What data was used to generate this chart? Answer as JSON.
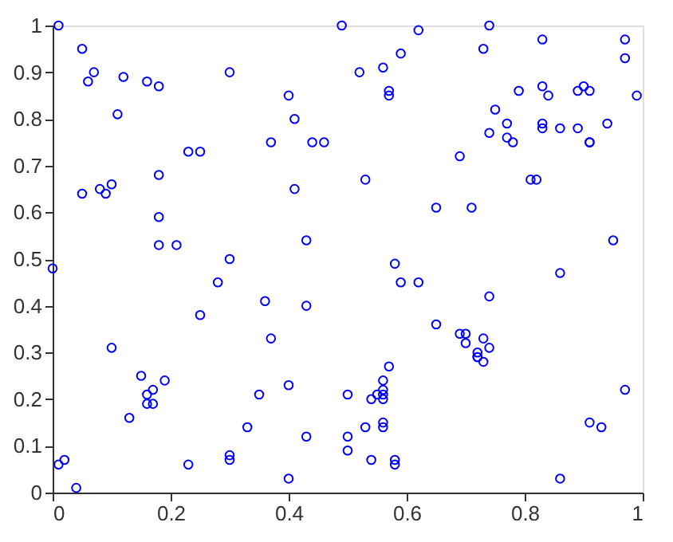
{
  "chart_data": {
    "type": "scatter",
    "marker": "circle",
    "grid": false,
    "xlim": [
      0,
      1
    ],
    "ylim": [
      0,
      1
    ],
    "xticks": [
      0,
      0.2,
      0.4,
      0.6,
      0.8,
      1
    ],
    "yticks": [
      0,
      0.1,
      0.2,
      0.3,
      0.4,
      0.5,
      0.6,
      0.7,
      0.8,
      0.9,
      1
    ],
    "series": [
      {
        "color": "#0000ff",
        "x": [
          0.01,
          0.05,
          0.06,
          0.07,
          0.11,
          0.12,
          0.16,
          0.18,
          0.3,
          0.4,
          0.41,
          0.37,
          0.44,
          0.46,
          0.23,
          0.25,
          0.05,
          0.08,
          0.09,
          0.1,
          0.18,
          0.41,
          0.18,
          0.18,
          0.21,
          0.43,
          0.3,
          0.49,
          0.74,
          0.62,
          0.83,
          0.97,
          0.59,
          0.73,
          0.52,
          0.56,
          0.97,
          0.99,
          0.79,
          0.83,
          0.84,
          0.89,
          0.9,
          0.91,
          0.57,
          0.57,
          0.75,
          0.77,
          0.74,
          0.77,
          0.78,
          0.83,
          0.83,
          0.86,
          0.89,
          0.91,
          0.91,
          0.94,
          0.69,
          0.53,
          0.81,
          0.82,
          0.65,
          0.71,
          0.95,
          0.58,
          0.0,
          0.28,
          0.25,
          0.36,
          0.43,
          0.37,
          0.1,
          0.15,
          0.19,
          0.16,
          0.17,
          0.16,
          0.17,
          0.13,
          0.35,
          0.4,
          0.5,
          0.33,
          0.5,
          0.43,
          0.5,
          0.01,
          0.02,
          0.04,
          0.23,
          0.3,
          0.3,
          0.4,
          0.59,
          0.62,
          0.86,
          0.74,
          0.65,
          0.69,
          0.7,
          0.7,
          0.73,
          0.74,
          0.72,
          0.72,
          0.72,
          0.73,
          0.57,
          0.56,
          0.56,
          0.55,
          0.56,
          0.54,
          0.56,
          0.56,
          0.56,
          0.53,
          0.54,
          0.58,
          0.58,
          0.91,
          0.93,
          0.97,
          0.86
        ],
        "values": [
          1.0,
          0.95,
          0.88,
          0.9,
          0.81,
          0.89,
          0.88,
          0.87,
          0.9,
          0.85,
          0.8,
          0.75,
          0.75,
          0.75,
          0.73,
          0.73,
          0.64,
          0.65,
          0.64,
          0.66,
          0.68,
          0.65,
          0.59,
          0.53,
          0.53,
          0.54,
          0.5,
          1.0,
          1.0,
          0.99,
          0.97,
          0.97,
          0.94,
          0.95,
          0.9,
          0.91,
          0.93,
          0.85,
          0.86,
          0.87,
          0.85,
          0.86,
          0.87,
          0.86,
          0.85,
          0.86,
          0.82,
          0.79,
          0.77,
          0.76,
          0.75,
          0.79,
          0.78,
          0.78,
          0.78,
          0.75,
          0.75,
          0.79,
          0.72,
          0.67,
          0.67,
          0.67,
          0.61,
          0.61,
          0.54,
          0.49,
          0.48,
          0.45,
          0.38,
          0.41,
          0.4,
          0.33,
          0.31,
          0.25,
          0.24,
          0.21,
          0.22,
          0.19,
          0.19,
          0.16,
          0.21,
          0.23,
          0.21,
          0.14,
          0.12,
          0.12,
          0.09,
          0.06,
          0.07,
          0.01,
          0.06,
          0.08,
          0.07,
          0.03,
          0.45,
          0.45,
          0.47,
          0.42,
          0.36,
          0.34,
          0.34,
          0.32,
          0.33,
          0.31,
          0.3,
          0.29,
          0.29,
          0.28,
          0.27,
          0.24,
          0.22,
          0.21,
          0.21,
          0.2,
          0.2,
          0.15,
          0.14,
          0.14,
          0.07,
          0.07,
          0.06,
          0.15,
          0.14,
          0.22,
          0.03
        ]
      }
    ]
  }
}
